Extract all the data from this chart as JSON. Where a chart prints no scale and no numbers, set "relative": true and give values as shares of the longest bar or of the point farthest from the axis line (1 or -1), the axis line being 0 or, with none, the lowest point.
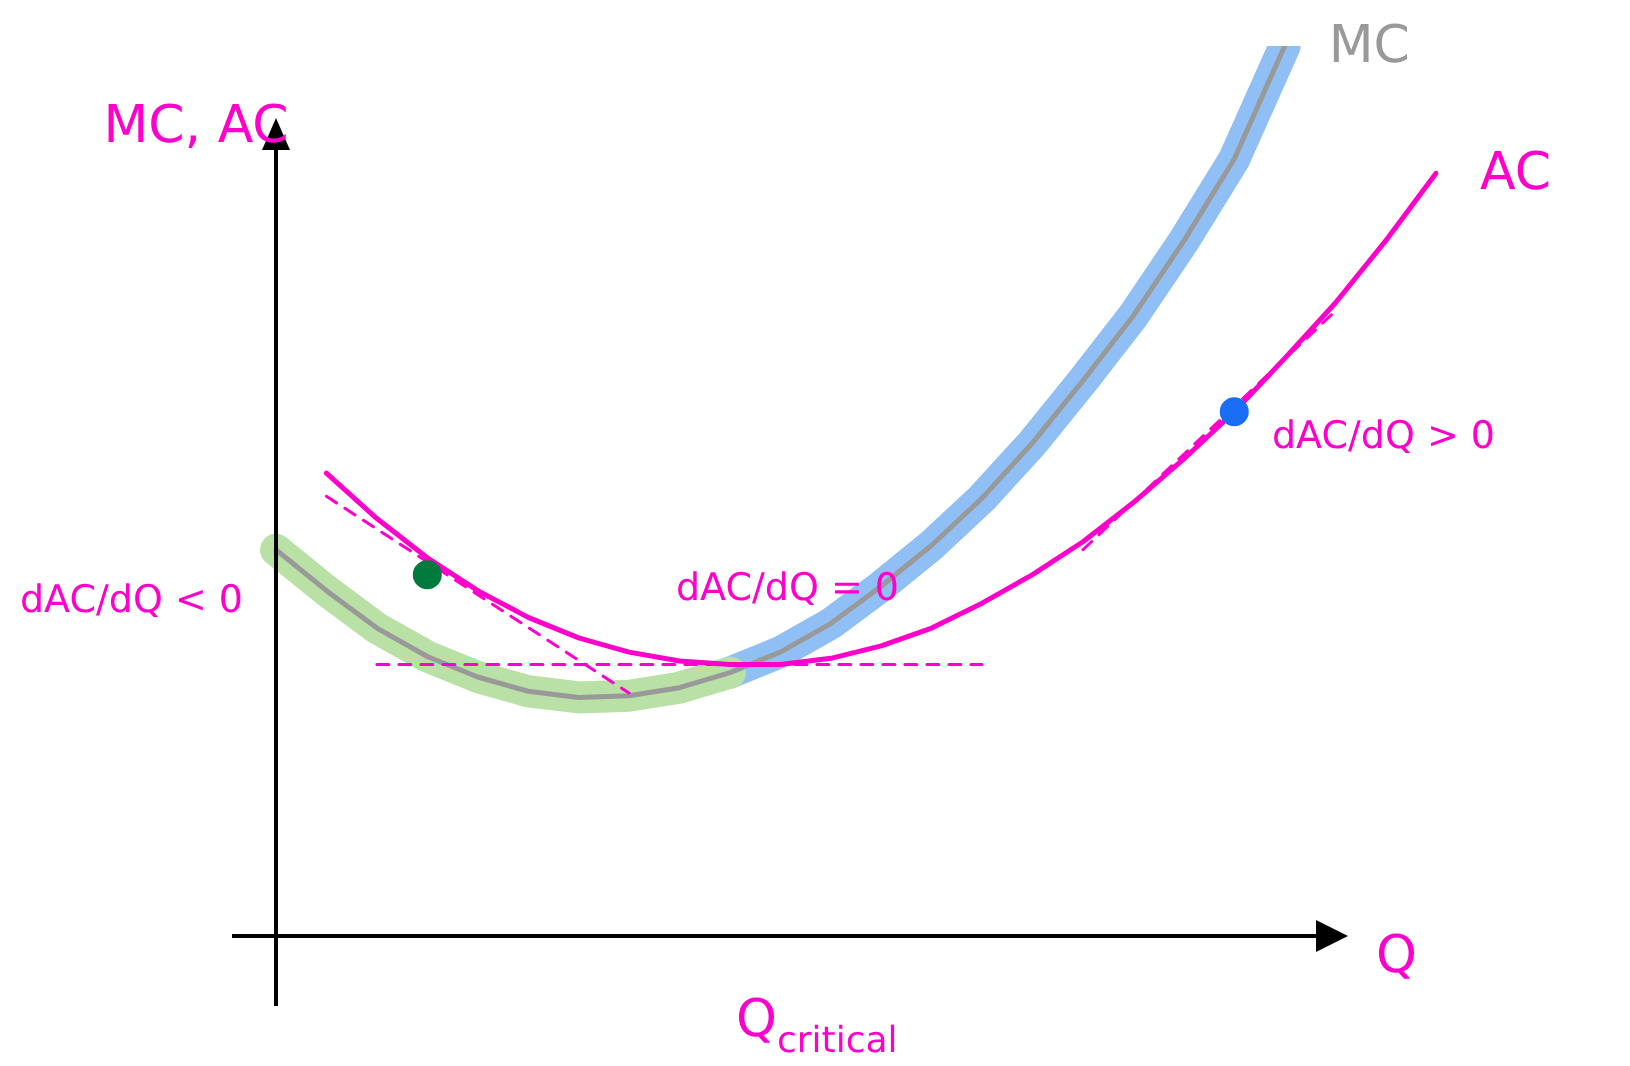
{
  "chart_data": {
    "type": "line",
    "relative": true,
    "xlabel": "Q",
    "ylabel": "MC, AC",
    "categories": [
      null,
      null,
      null,
      null,
      null,
      null,
      null,
      null,
      null,
      null,
      null,
      null,
      null,
      null,
      null,
      null,
      null,
      null,
      null,
      null,
      null,
      null,
      null,
      null
    ],
    "series": [
      {
        "color": "#b9e0a5",
        "values": [
          0.434,
          0.388,
          0.346,
          0.314,
          0.291,
          0.275,
          0.268,
          0.27,
          0.279,
          0.296,
          null,
          null,
          null,
          null,
          null,
          null,
          null,
          null,
          null,
          null,
          null,
          null,
          null,
          null
        ]
      },
      {
        "color": "#8fbff5",
        "values": [
          null,
          null,
          null,
          null,
          null,
          null,
          null,
          null,
          null,
          0.296,
          0.319,
          0.351,
          0.393,
          0.439,
          0.492,
          0.554,
          0.624,
          0.697,
          0.781,
          0.873,
          1.0,
          null,
          null,
          null
        ]
      },
      {
        "name": "MC",
        "color": "#999999",
        "values": [
          0.434,
          0.388,
          0.346,
          0.314,
          0.291,
          0.275,
          0.268,
          0.27,
          0.279,
          0.296,
          0.319,
          0.351,
          0.393,
          0.439,
          0.492,
          0.554,
          0.624,
          0.697,
          0.781,
          0.873,
          1.0,
          null,
          null,
          null
        ]
      },
      {
        "name": "AC",
        "color": "#ff00cc",
        "values": [
          null,
          0.52,
          0.469,
          0.425,
          0.388,
          0.358,
          0.335,
          0.319,
          0.309,
          0.305,
          0.305,
          0.312,
          0.326,
          0.346,
          0.374,
          0.406,
          0.443,
          0.487,
          0.536,
          0.589,
          0.649,
          0.711,
          0.781,
          0.857
        ]
      },
      {
        "color": "#ff00cc",
        "line_style": "dashed",
        "values": [
          null,
          0.494,
          null,
          null,
          null,
          null,
          null,
          0.273,
          null,
          null,
          null,
          null,
          null,
          null,
          null,
          null,
          null,
          null,
          null,
          null,
          null,
          null,
          null,
          null
        ]
      },
      {
        "color": "#ff00cc",
        "line_style": "dashed",
        "values": [
          null,
          null,
          null,
          null,
          null,
          null,
          null,
          null,
          null,
          null,
          null,
          null,
          null,
          null,
          null,
          null,
          0.434,
          null,
          null,
          null,
          null,
          0.702,
          null,
          null
        ]
      },
      {
        "color": "#ff00cc",
        "line_style": "dashed",
        "values": [
          null,
          null,
          0.305,
          null,
          null,
          null,
          null,
          null,
          null,
          null,
          null,
          null,
          null,
          null,
          0.305,
          null,
          null,
          null,
          null,
          null,
          null,
          null,
          null,
          null
        ]
      },
      {
        "color": "#007a3d",
        "marker": "circle",
        "values": [
          null,
          null,
          null,
          0.406,
          null,
          null,
          null,
          null,
          null,
          null,
          null,
          null,
          null,
          null,
          null,
          null,
          null,
          null,
          null,
          null,
          null,
          null,
          null,
          null
        ]
      },
      {
        "color": "#1a6ef5",
        "marker": "circle",
        "values": [
          null,
          null,
          null,
          null,
          null,
          null,
          null,
          null,
          null,
          null,
          null,
          null,
          null,
          null,
          null,
          null,
          null,
          null,
          null,
          0.589,
          null,
          null,
          null,
          null
        ]
      }
    ],
    "annotations": [
      "dAC/dQ < 0",
      "dAC/dQ = 0",
      "dAC/dQ > 0",
      "Q$_{critical}$"
    ],
    "marker": "none"
  }
}
